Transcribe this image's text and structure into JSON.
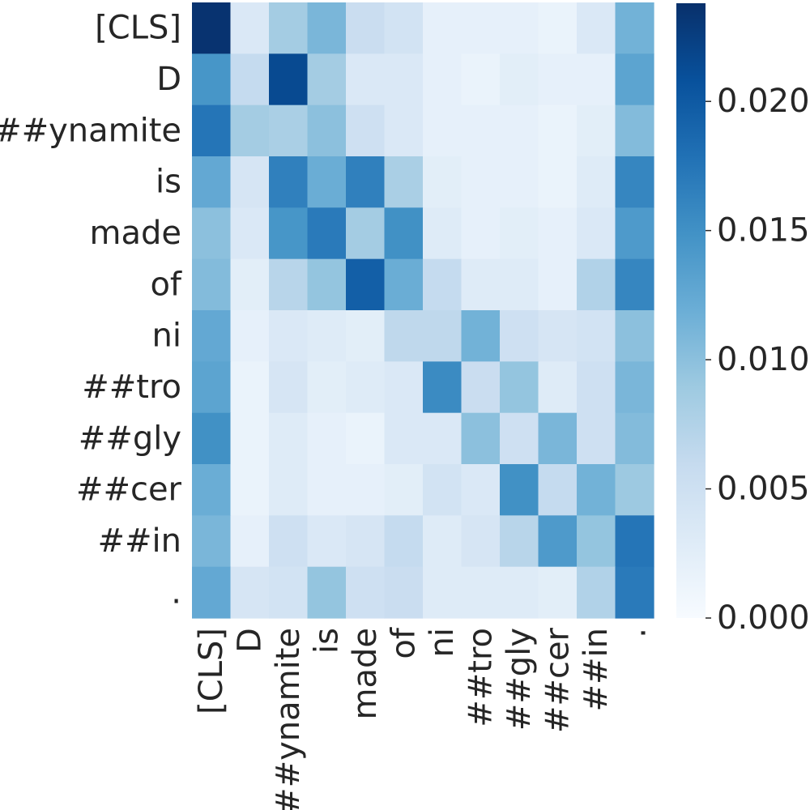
{
  "chart_data": {
    "type": "heatmap",
    "title": "",
    "xlabel": "",
    "ylabel": "",
    "rows": [
      "[CLS]",
      "D",
      "##ynamite",
      "is",
      "made",
      "of",
      "ni",
      "##tro",
      "##gly",
      "##cer",
      "##in",
      "."
    ],
    "columns": [
      "[CLS]",
      "D",
      "##ynamite",
      "is",
      "made",
      "of",
      "ni",
      "##tro",
      "##gly",
      "##cer",
      "##in",
      "."
    ],
    "values": [
      [
        0.0235,
        0.0035,
        0.0085,
        0.011,
        0.0055,
        0.0045,
        0.002,
        0.002,
        0.002,
        0.0015,
        0.0035,
        0.0115
      ],
      [
        0.0145,
        0.006,
        0.0215,
        0.0085,
        0.0035,
        0.0035,
        0.002,
        0.0015,
        0.0025,
        0.002,
        0.002,
        0.013
      ],
      [
        0.0175,
        0.0085,
        0.008,
        0.01,
        0.005,
        0.0035,
        0.002,
        0.002,
        0.002,
        0.0015,
        0.0025,
        0.0105
      ],
      [
        0.0125,
        0.004,
        0.0165,
        0.012,
        0.0165,
        0.008,
        0.0025,
        0.002,
        0.002,
        0.0015,
        0.003,
        0.016
      ],
      [
        0.01,
        0.0035,
        0.0145,
        0.017,
        0.0085,
        0.015,
        0.003,
        0.002,
        0.0025,
        0.002,
        0.0035,
        0.014
      ],
      [
        0.0105,
        0.0025,
        0.007,
        0.0095,
        0.0195,
        0.012,
        0.006,
        0.003,
        0.003,
        0.002,
        0.0075,
        0.016
      ],
      [
        0.0125,
        0.002,
        0.0035,
        0.003,
        0.0025,
        0.0065,
        0.0065,
        0.0115,
        0.005,
        0.004,
        0.0045,
        0.01
      ],
      [
        0.013,
        0.0015,
        0.004,
        0.0025,
        0.003,
        0.0035,
        0.0155,
        0.0055,
        0.0095,
        0.003,
        0.005,
        0.011
      ],
      [
        0.015,
        0.0015,
        0.003,
        0.002,
        0.0015,
        0.0035,
        0.0035,
        0.01,
        0.005,
        0.011,
        0.005,
        0.0105
      ],
      [
        0.012,
        0.0015,
        0.003,
        0.002,
        0.002,
        0.0025,
        0.0045,
        0.0035,
        0.015,
        0.006,
        0.0115,
        0.009
      ],
      [
        0.011,
        0.002,
        0.005,
        0.0035,
        0.004,
        0.006,
        0.003,
        0.004,
        0.007,
        0.014,
        0.0095,
        0.0175
      ],
      [
        0.0125,
        0.004,
        0.0045,
        0.0095,
        0.005,
        0.0055,
        0.003,
        0.003,
        0.003,
        0.0025,
        0.0075,
        0.017
      ]
    ],
    "vmin": 0.0,
    "vmax": 0.0238,
    "colormap": [
      "#f7fbff",
      "#deebf7",
      "#c6dbef",
      "#9ecae1",
      "#6baed6",
      "#4292c6",
      "#2171b5",
      "#08519c",
      "#08306b"
    ],
    "colorbar": {
      "ticks": [
        0.0,
        0.005,
        0.01,
        0.015,
        0.02
      ],
      "tick_labels": [
        "0.000",
        "0.005",
        "0.010",
        "0.015",
        "0.020"
      ]
    }
  }
}
